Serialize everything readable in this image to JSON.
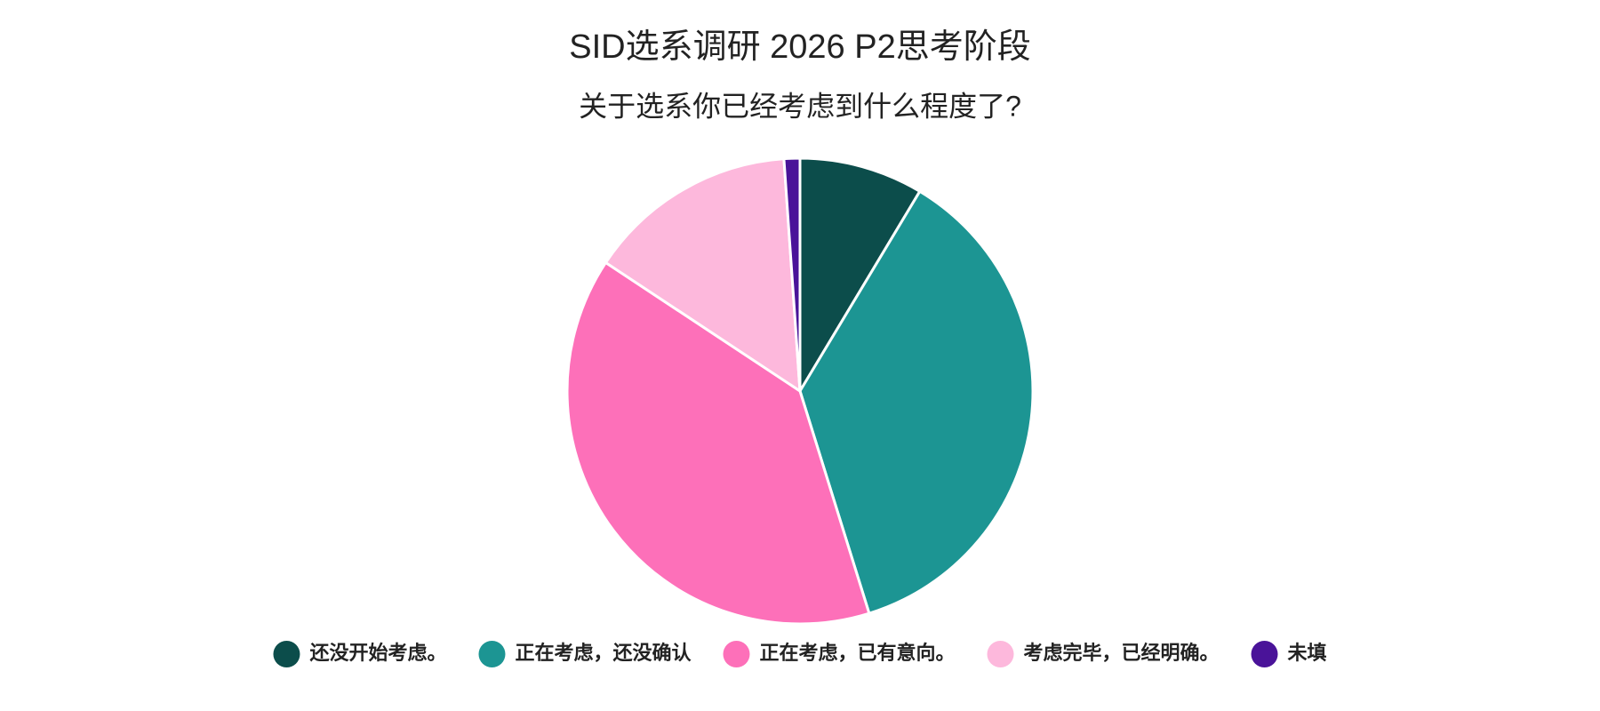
{
  "chart_data": {
    "type": "pie",
    "title": "SID选系调研 2026 P2思考阶段",
    "subtitle": "关于选系你已经考虑到什么程度了?",
    "categories": [
      "还没开始考虑。",
      "正在考虑，还没确认",
      "正在考虑，已有意向。",
      "考虑完毕，已经明确。",
      "未填"
    ],
    "values": [
      8.6,
      36.6,
      39.1,
      14.6,
      1.1
    ],
    "colors": [
      "#0c4d4b",
      "#1c9593",
      "#fd70b9",
      "#fdb8dc",
      "#4a1399"
    ],
    "legend": "bottom"
  }
}
